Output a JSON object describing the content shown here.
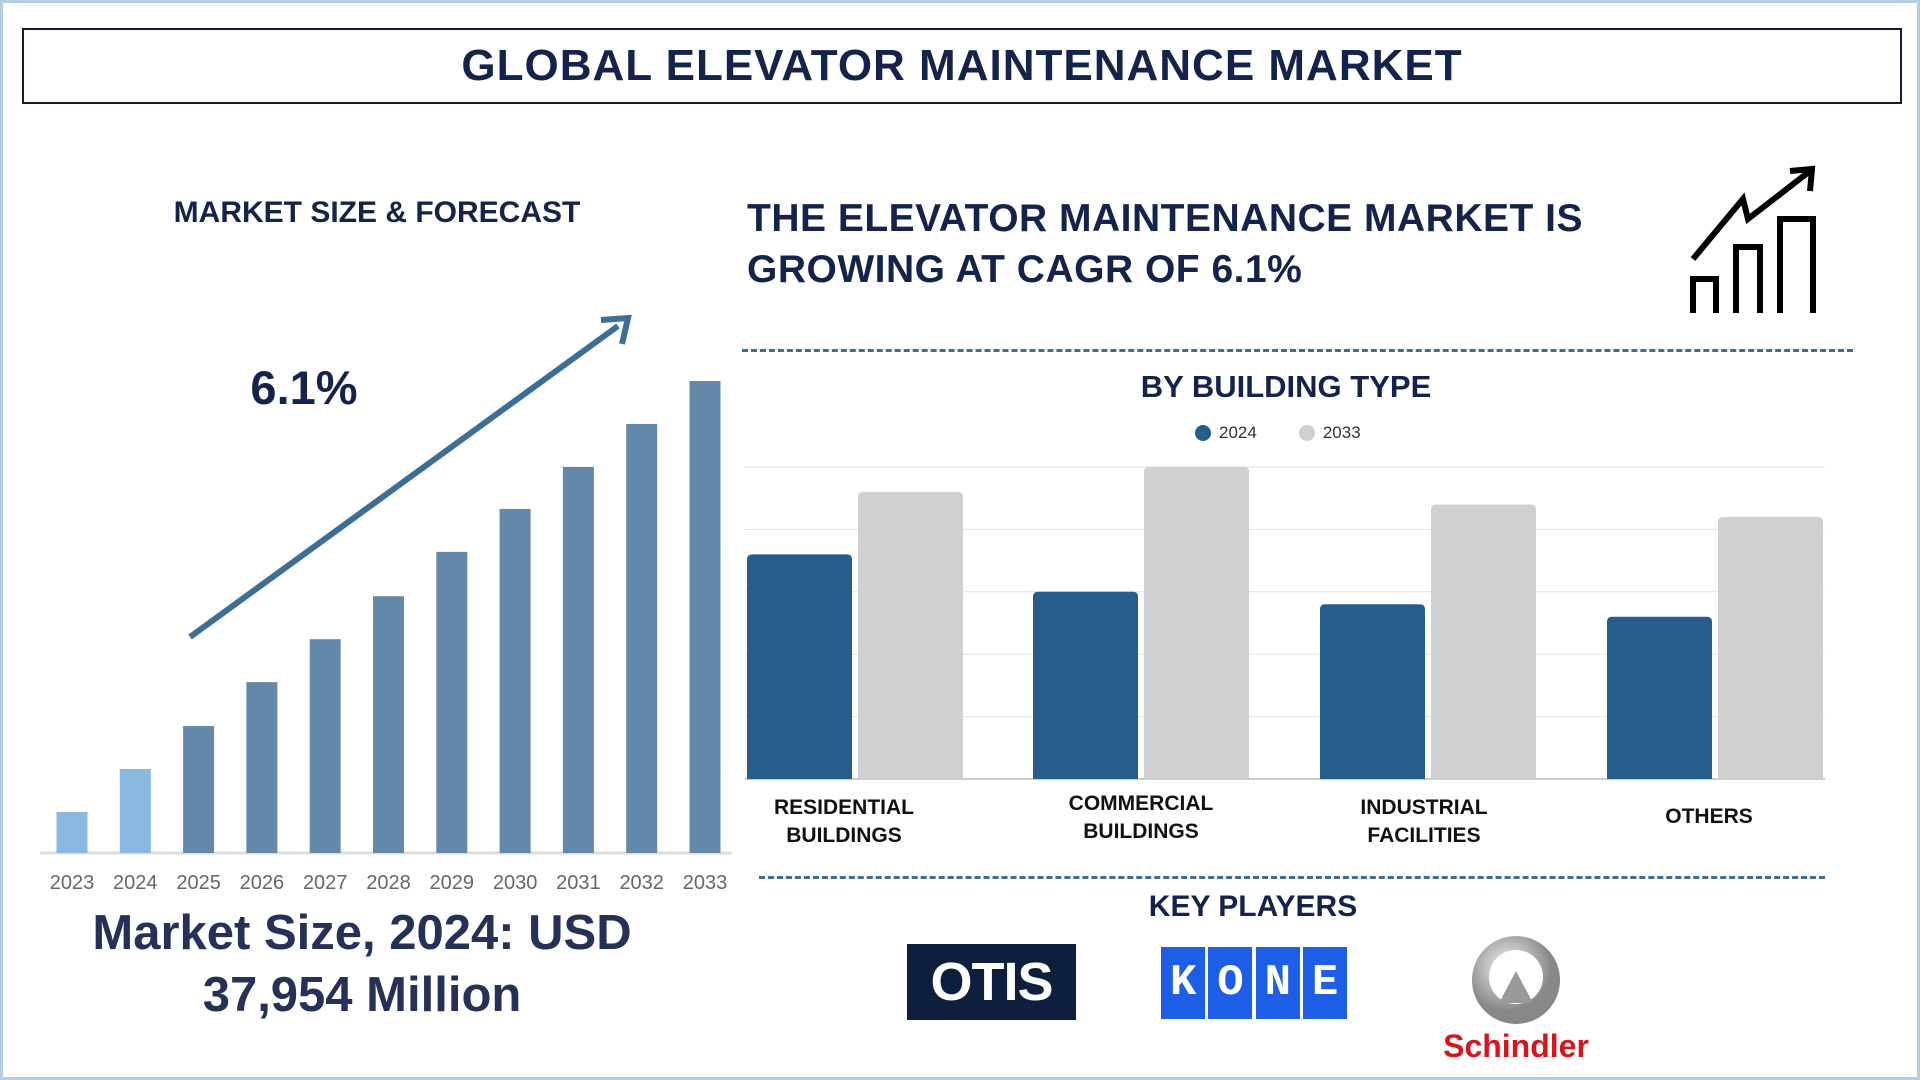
{
  "title": "GLOBAL ELEVATOR MAINTENANCE MARKET",
  "left": {
    "heading": "MARKET SIZE & FORECAST",
    "cagr_label": "6.1%",
    "market_size_line1": "Market Size, 2024: USD",
    "market_size_line2": "37,954 Million"
  },
  "right": {
    "headline_line1": "THE ELEVATOR MAINTENANCE MARKET IS",
    "headline_line2": "GROWING AT CAGR OF 6.1%",
    "key_players_heading": "KEY PLAYERS",
    "players": [
      "OTIS",
      "KONE",
      "Schindler"
    ]
  },
  "colors": {
    "title": "#14234b",
    "forecast_bar": "#6388aa",
    "historic_bar": "#8bb8e0",
    "arrow": "#3d6e96",
    "series_2024": "#275d8c",
    "series_2033": "#d0d0d0",
    "otis_bg": "#0d1f3c",
    "kone_bg": "#1e5ee6",
    "schindler_red": "#d8141c"
  },
  "chart_data": [
    {
      "type": "bar",
      "title": "MARKET SIZE & FORECAST",
      "categories": [
        "2023",
        "2024",
        "2025",
        "2026",
        "2027",
        "2028",
        "2029",
        "2030",
        "2031",
        "2032",
        "2033"
      ],
      "values": [
        8.7,
        17.8,
        26.9,
        36.2,
        45.3,
        54.4,
        63.8,
        72.9,
        81.8,
        90.9,
        100
      ],
      "ylim": [
        0,
        100
      ],
      "grid": false,
      "annotation": "6.1%"
    },
    {
      "type": "bar",
      "title": "BY BUILDING TYPE",
      "categories": [
        [
          "RESIDENTIAL",
          "BUILDINGS"
        ],
        [
          "COMMERCIAL",
          "BUILDINGS"
        ],
        [
          "INDUSTRIAL",
          "FACILITIES"
        ],
        [
          "OTHERS"
        ]
      ],
      "series": [
        {
          "name": "2024",
          "values": [
            3.6,
            3.0,
            2.8,
            2.6
          ]
        },
        {
          "name": "2033",
          "values": [
            4.6,
            5.0,
            4.4,
            4.2
          ]
        }
      ],
      "ylim": [
        0,
        5
      ],
      "grid": true,
      "legend": "top-center"
    }
  ]
}
